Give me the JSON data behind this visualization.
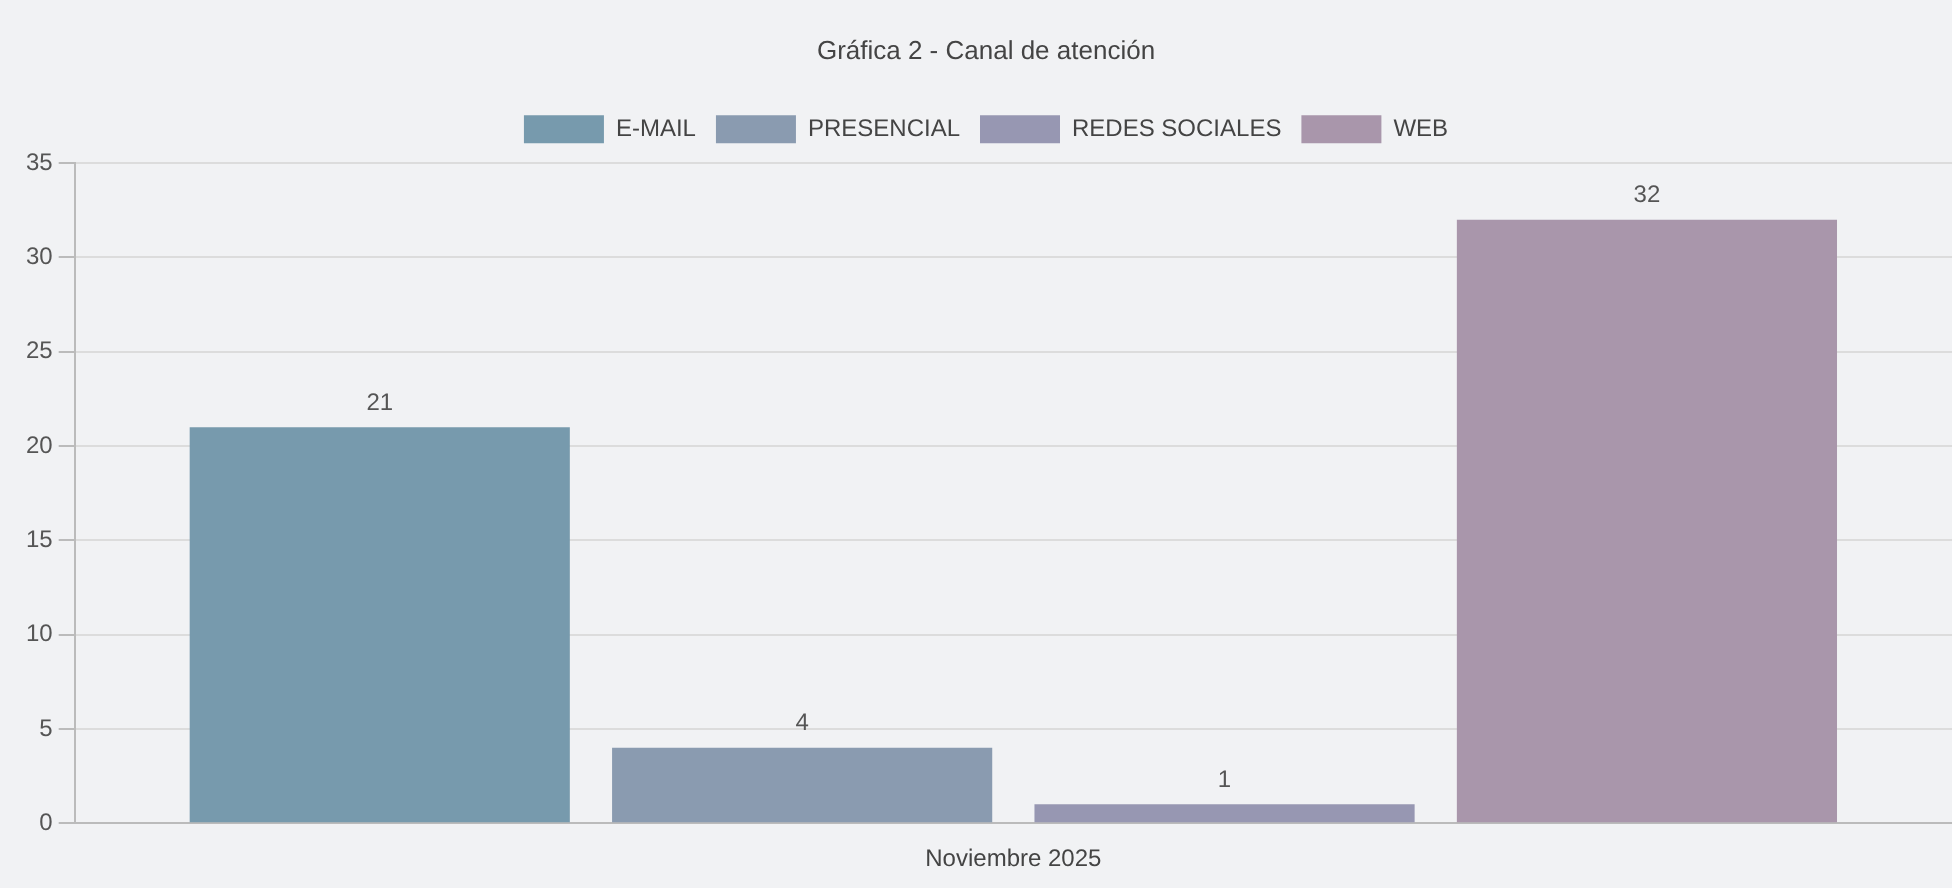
{
  "chart_data": {
    "type": "bar",
    "title": "Gráfica 2 - Canal de atención",
    "categories": [
      "Noviembre 2025"
    ],
    "series": [
      {
        "name": "E-MAIL",
        "color": "#779aad",
        "values": [
          21
        ]
      },
      {
        "name": "PRESENCIAL",
        "color": "#8a9bb0",
        "values": [
          4
        ]
      },
      {
        "name": "REDES SOCIALES",
        "color": "#9797b2",
        "values": [
          1
        ]
      },
      {
        "name": "WEB",
        "color": "#a996ab",
        "values": [
          32
        ]
      }
    ],
    "ylim": [
      0,
      35
    ],
    "yticks": [
      0,
      5,
      10,
      15,
      20,
      25,
      30,
      35
    ],
    "grid": "y",
    "legend": "top",
    "data_labels": true
  }
}
